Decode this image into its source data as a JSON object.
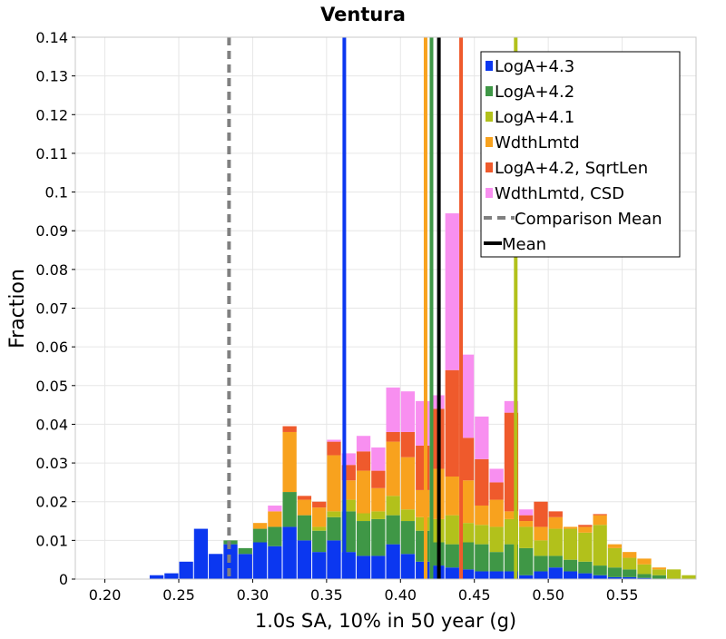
{
  "chart_data": {
    "type": "bar",
    "title": "Ventura",
    "xlabel": "1.0s SA, 10% in 50 year (g)",
    "ylabel": "Fraction",
    "xlim": [
      0.18,
      0.6
    ],
    "ylim": [
      0,
      0.14
    ],
    "bin_width": 0.01,
    "stacked": true,
    "x_ticks": [
      "0.20",
      "0.25",
      "0.30",
      "0.35",
      "0.40",
      "0.45",
      "0.50",
      "0.55"
    ],
    "x_tick_values": [
      0.2,
      0.25,
      0.3,
      0.35,
      0.4,
      0.45,
      0.5,
      0.55
    ],
    "y_ticks": [
      "0",
      "0.01",
      "0.02",
      "0.03",
      "0.04",
      "0.05",
      "0.06",
      "0.07",
      "0.08",
      "0.09",
      "0.1",
      "0.11",
      "0.12",
      "0.13",
      "0.14"
    ],
    "y_tick_values": [
      0,
      0.01,
      0.02,
      0.03,
      0.04,
      0.05,
      0.06,
      0.07,
      0.08,
      0.09,
      0.1,
      0.11,
      0.12,
      0.13,
      0.14
    ],
    "grid": true,
    "legend_position": "top-right",
    "bin_starts": [
      0.23,
      0.24,
      0.25,
      0.26,
      0.27,
      0.28,
      0.29,
      0.3,
      0.31,
      0.32,
      0.33,
      0.34,
      0.35,
      0.36,
      0.37,
      0.38,
      0.39,
      0.4,
      0.41,
      0.42,
      0.43,
      0.44,
      0.45,
      0.46,
      0.47,
      0.48,
      0.49,
      0.5,
      0.51,
      0.52,
      0.53,
      0.54,
      0.55,
      0.56,
      0.57,
      0.58,
      0.59
    ],
    "series": [
      {
        "name": "LogA+4.3",
        "color": "#0b37f0",
        "values": [
          0.001,
          0.0015,
          0.0045,
          0.013,
          0.0065,
          0.009,
          0.0065,
          0.0095,
          0.0085,
          0.0135,
          0.01,
          0.007,
          0.01,
          0.007,
          0.006,
          0.006,
          0.009,
          0.0065,
          0.0045,
          0.0035,
          0.003,
          0.0025,
          0.002,
          0.002,
          0.002,
          0.001,
          0.002,
          0.003,
          0.002,
          0.0015,
          0.001,
          0.0005,
          0.0005,
          0.0003,
          0.0,
          0.0,
          0.0
        ]
      },
      {
        "name": "LogA+4.2",
        "color": "#3f9746",
        "values": [
          0,
          0,
          0,
          0,
          0,
          0.001,
          0.0015,
          0.0035,
          0.005,
          0.009,
          0.0065,
          0.0055,
          0.006,
          0.0105,
          0.009,
          0.0095,
          0.0075,
          0.0085,
          0.008,
          0.006,
          0.006,
          0.007,
          0.007,
          0.005,
          0.007,
          0.007,
          0.004,
          0.003,
          0.003,
          0.003,
          0.0025,
          0.0025,
          0.002,
          0.001,
          0.001,
          0.0,
          0.0
        ]
      },
      {
        "name": "LogA+4.1",
        "color": "#b2c11b",
        "values": [
          0,
          0,
          0,
          0,
          0,
          0,
          0,
          0,
          0,
          0,
          0,
          0.001,
          0.0015,
          0.003,
          0.002,
          0.002,
          0.005,
          0.003,
          0.0035,
          0.006,
          0.0075,
          0.005,
          0.005,
          0.0065,
          0.0065,
          0.0055,
          0.004,
          0.007,
          0.008,
          0.0075,
          0.0105,
          0.005,
          0.003,
          0.0025,
          0.0015,
          0.0025,
          0.001
        ]
      },
      {
        "name": "WdthLmtd",
        "color": "#f8a21e",
        "values": [
          0,
          0,
          0,
          0,
          0,
          0,
          0,
          0.0015,
          0.004,
          0.0155,
          0.004,
          0.005,
          0.0145,
          0.005,
          0.011,
          0.006,
          0.014,
          0.0135,
          0.007,
          0.013,
          0.01,
          0.011,
          0.005,
          0.007,
          0.002,
          0.0015,
          0.0035,
          0.003,
          0.0005,
          0.0015,
          0.0025,
          0.001,
          0.0015,
          0.0015,
          0.0005,
          0.0,
          0.0
        ]
      },
      {
        "name": "LogA+4.2, SqrtLen",
        "color": "#ef5a2c",
        "values": [
          0,
          0,
          0,
          0,
          0,
          0,
          0,
          0.0,
          0.0,
          0.0015,
          0.001,
          0.0015,
          0.0035,
          0.004,
          0.005,
          0.0045,
          0.0025,
          0.0065,
          0.0115,
          0.0155,
          0.0275,
          0.011,
          0.012,
          0.0045,
          0.0255,
          0.0015,
          0.0065,
          0.0015,
          0.0,
          0.0005,
          0.0003,
          0.0,
          0.0,
          0.0,
          0.0,
          0.0,
          0.0
        ]
      },
      {
        "name": "WdthLmtd, CSD",
        "color": "#f88ff0",
        "values": [
          0,
          0,
          0,
          0,
          0,
          0,
          0,
          0,
          0.0015,
          0.0,
          0.0,
          0.0,
          0.0005,
          0.003,
          0.004,
          0.006,
          0.0115,
          0.0105,
          0.0115,
          0.0035,
          0.0405,
          0.0215,
          0.011,
          0.0035,
          0.003,
          0.0015,
          0.0,
          0.0,
          0.0,
          0.0,
          0.0,
          0.0,
          0.0,
          0.0,
          0.0,
          0.0,
          0.0
        ]
      }
    ],
    "vertical_lines": [
      {
        "series": "LogA+4.3",
        "x": 0.362,
        "color": "#0b37f0",
        "style": "solid"
      },
      {
        "series": "LogA+4.2",
        "x": 0.421,
        "color": "#3f9746",
        "style": "solid"
      },
      {
        "series": "LogA+4.1",
        "x": 0.478,
        "color": "#b2c11b",
        "style": "solid"
      },
      {
        "series": "WdthLmtd",
        "x": 0.417,
        "color": "#f8a21e",
        "style": "solid"
      },
      {
        "series": "LogA+4.2, SqrtLen",
        "x": 0.441,
        "color": "#ef5a2c",
        "style": "solid"
      },
      {
        "series": "Comparison Mean",
        "x": 0.284,
        "color": "#808080",
        "style": "dashed"
      },
      {
        "series": "Mean",
        "x": 0.426,
        "color": "#000000",
        "style": "solid"
      }
    ],
    "legend": [
      {
        "label": "LogA+4.3",
        "color": "#0b37f0",
        "kind": "swatch"
      },
      {
        "label": "LogA+4.2",
        "color": "#3f9746",
        "kind": "swatch"
      },
      {
        "label": "LogA+4.1",
        "color": "#b2c11b",
        "kind": "swatch"
      },
      {
        "label": "WdthLmtd",
        "color": "#f8a21e",
        "kind": "swatch"
      },
      {
        "label": "LogA+4.2, SqrtLen",
        "color": "#ef5a2c",
        "kind": "swatch"
      },
      {
        "label": "WdthLmtd, CSD",
        "color": "#f88ff0",
        "kind": "swatch"
      },
      {
        "label": "Comparison Mean",
        "color": "#808080",
        "kind": "dashed"
      },
      {
        "label": "Mean",
        "color": "#000000",
        "kind": "line"
      }
    ]
  }
}
